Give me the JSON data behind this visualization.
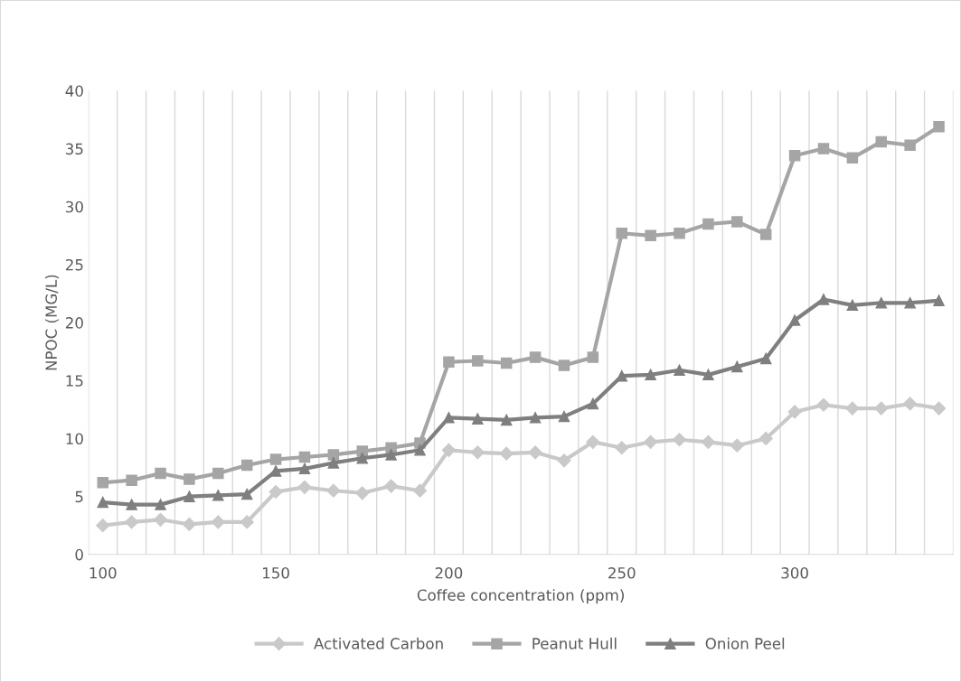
{
  "chart_data": {
    "type": "line",
    "xlabel": "Coffee concentration (ppm)",
    "ylabel": "NPOC (MG/L)",
    "categories": [
      "100",
      null,
      null,
      null,
      null,
      null,
      "150",
      null,
      null,
      null,
      null,
      null,
      "200",
      null,
      null,
      null,
      null,
      null,
      "250",
      null,
      null,
      null,
      null,
      null,
      "300",
      null,
      null,
      null,
      null,
      null
    ],
    "ylim": [
      0,
      40
    ],
    "yticks": [
      0,
      5,
      10,
      15,
      20,
      25,
      30,
      35,
      40
    ],
    "grid": "x",
    "legend": "bottom",
    "line_style": "solid",
    "series": [
      {
        "name": "Activated Carbon",
        "color": "#c9c9c9",
        "marker": "diamond",
        "values": [
          2.5,
          2.8,
          3.0,
          2.6,
          2.8,
          2.8,
          5.4,
          5.8,
          5.5,
          5.3,
          5.9,
          5.5,
          9.0,
          8.8,
          8.7,
          8.8,
          8.1,
          9.7,
          9.2,
          9.7,
          9.9,
          9.7,
          9.4,
          10.0,
          12.3,
          12.9,
          12.6,
          12.6,
          13.0,
          12.6
        ]
      },
      {
        "name": "Peanut Hull",
        "color": "#a5a5a5",
        "marker": "square",
        "values": [
          6.2,
          6.4,
          7.0,
          6.5,
          7.0,
          7.7,
          8.2,
          8.4,
          8.6,
          8.9,
          9.2,
          9.6,
          16.6,
          16.7,
          16.5,
          17.0,
          16.3,
          17.0,
          27.7,
          27.5,
          27.7,
          28.5,
          28.7,
          27.6,
          34.4,
          35.0,
          34.2,
          35.6,
          35.3,
          36.9
        ]
      },
      {
        "name": "Onion Peel",
        "color": "#7f7f7f",
        "marker": "triangle",
        "values": [
          4.5,
          4.3,
          4.3,
          5.0,
          5.1,
          5.2,
          7.2,
          7.4,
          7.9,
          8.3,
          8.6,
          9.0,
          11.8,
          11.7,
          11.6,
          11.8,
          11.9,
          13.0,
          15.4,
          15.5,
          15.9,
          15.5,
          16.2,
          16.9,
          20.2,
          22.0,
          21.5,
          21.7,
          21.7,
          21.9
        ]
      }
    ]
  }
}
